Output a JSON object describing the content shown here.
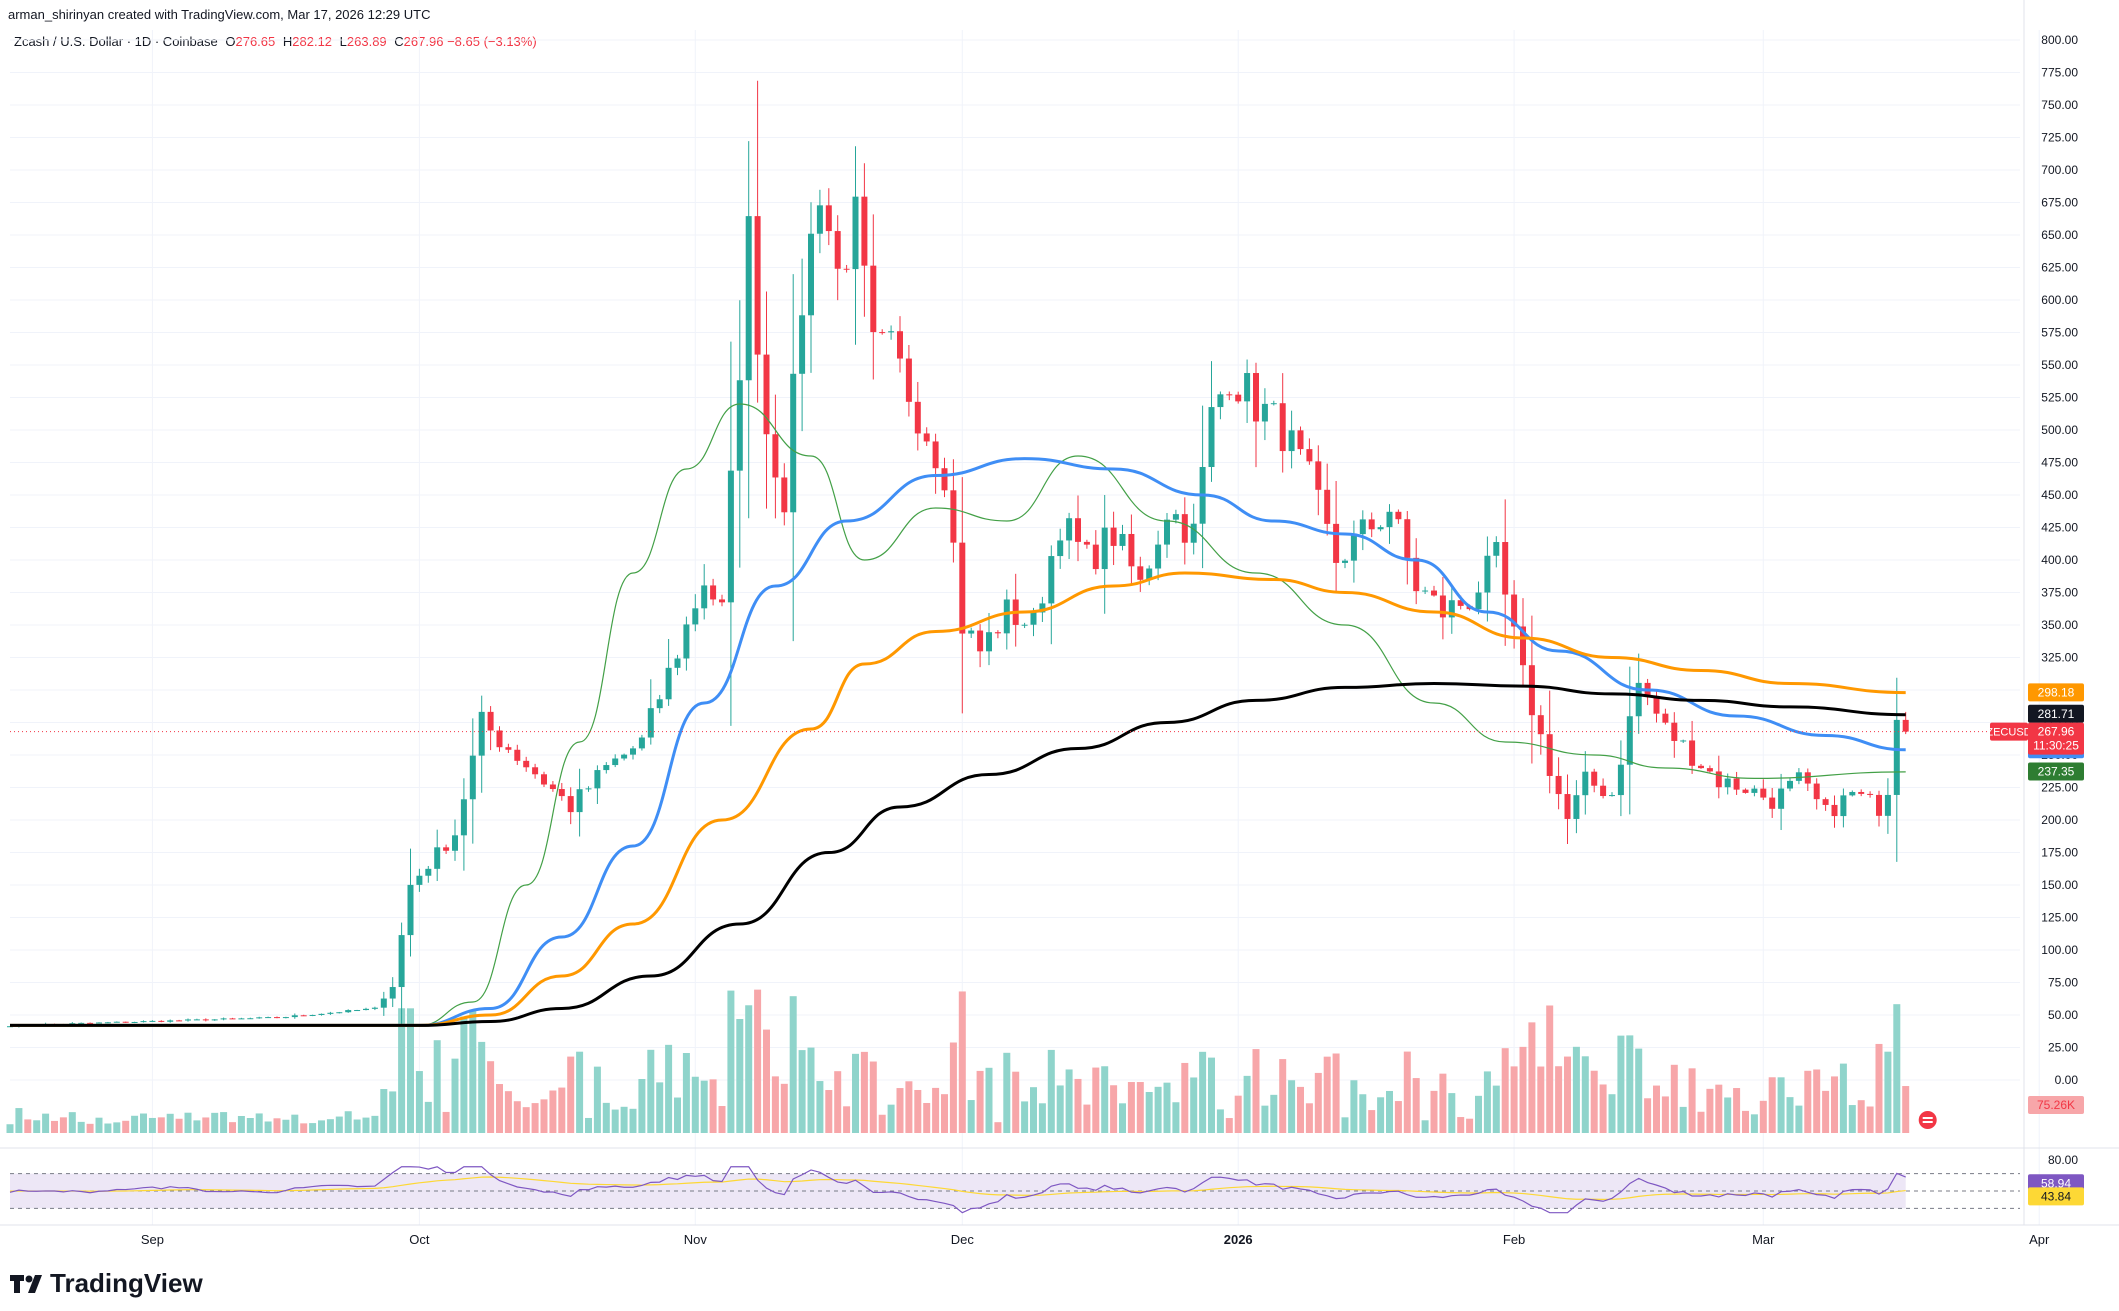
{
  "header": {
    "created_by": "arman_shirinyan created with TradingView.com, Mar 17, 2026 12:29 UTC",
    "symbol": "Zcash / U.S. Dollar · 1D · Coinbase",
    "ohlc": {
      "o_label": "O",
      "o": "276.65",
      "h_label": "H",
      "h": "282.12",
      "l_label": "L",
      "l": "263.89",
      "c_label": "C",
      "c": "267.96",
      "change": "−8.65 (−3.13%)"
    }
  },
  "brand": {
    "name": "TradingView",
    "icon": "tradingview-logo-icon"
  },
  "colors": {
    "up": "#26a69a",
    "down": "#f23645",
    "up_volume": "#8fd4cb",
    "down_volume": "#f7a6a9",
    "ma20": "#43a047",
    "ma50": "#3f8ef5",
    "ma100": "#ff9800",
    "ma200": "#000000",
    "rsi": "#7e57c2",
    "rsi_ma": "#fdd835",
    "rsi_band": "#ede7f6"
  },
  "chart_data": {
    "type": "candlestick",
    "price_axis": {
      "min": 0,
      "max": 800,
      "ticks": [
        "0.00",
        "25.00",
        "50.00",
        "75.00",
        "100.00",
        "125.00",
        "150.00",
        "175.00",
        "200.00",
        "225.00",
        "250.00",
        "275.00",
        "300.00",
        "325.00",
        "350.00",
        "375.00",
        "400.00",
        "425.00",
        "450.00",
        "475.00",
        "500.00",
        "525.00",
        "550.00",
        "575.00",
        "600.00",
        "625.00",
        "650.00",
        "675.00",
        "700.00",
        "725.00",
        "750.00",
        "775.00",
        "800.00"
      ]
    },
    "time_axis": {
      "labels": [
        {
          "text": "Sep",
          "bold": false
        },
        {
          "text": "Oct",
          "bold": false
        },
        {
          "text": "Nov",
          "bold": false
        },
        {
          "text": "Dec",
          "bold": false
        },
        {
          "text": "2026",
          "bold": true
        },
        {
          "text": "Feb",
          "bold": false
        },
        {
          "text": "Mar",
          "bold": false
        },
        {
          "text": "Apr",
          "bold": false
        }
      ]
    },
    "candle_close_points": [
      {
        "date": "2025-08-16",
        "close": 42
      },
      {
        "date": "2025-09-15",
        "close": 48
      },
      {
        "date": "2025-09-26",
        "close": 55
      },
      {
        "date": "2025-09-28",
        "close": 72
      },
      {
        "date": "2025-09-30",
        "close": 150
      },
      {
        "date": "2025-10-05",
        "close": 190
      },
      {
        "date": "2025-10-08",
        "close": 275
      },
      {
        "date": "2025-10-15",
        "close": 230
      },
      {
        "date": "2025-10-18",
        "close": 210
      },
      {
        "date": "2025-10-22",
        "close": 240
      },
      {
        "date": "2025-10-26",
        "close": 260
      },
      {
        "date": "2025-10-30",
        "close": 330
      },
      {
        "date": "2025-11-02",
        "close": 385
      },
      {
        "date": "2025-11-04",
        "close": 360
      },
      {
        "date": "2025-11-07",
        "close": 650
      },
      {
        "date": "2025-11-09",
        "close": 500
      },
      {
        "date": "2025-11-11",
        "close": 450
      },
      {
        "date": "2025-11-13",
        "close": 600
      },
      {
        "date": "2025-11-15",
        "close": 690
      },
      {
        "date": "2025-11-17",
        "close": 620
      },
      {
        "date": "2025-11-19",
        "close": 660
      },
      {
        "date": "2025-11-21",
        "close": 560
      },
      {
        "date": "2025-11-23",
        "close": 560
      },
      {
        "date": "2025-11-25",
        "close": 530
      },
      {
        "date": "2025-11-29",
        "close": 470
      },
      {
        "date": "2025-12-01",
        "close": 350
      },
      {
        "date": "2025-12-03",
        "close": 330
      },
      {
        "date": "2025-12-06",
        "close": 360
      },
      {
        "date": "2025-12-09",
        "close": 350
      },
      {
        "date": "2025-12-12",
        "close": 430
      },
      {
        "date": "2025-12-15",
        "close": 400
      },
      {
        "date": "2025-12-18",
        "close": 420
      },
      {
        "date": "2025-12-21",
        "close": 380
      },
      {
        "date": "2025-12-24",
        "close": 440
      },
      {
        "date": "2025-12-27",
        "close": 420
      },
      {
        "date": "2025-12-29",
        "close": 510
      },
      {
        "date": "2025-12-31",
        "close": 545
      },
      {
        "date": "2026-01-03",
        "close": 520
      },
      {
        "date": "2026-01-06",
        "close": 500
      },
      {
        "date": "2026-01-09",
        "close": 460
      },
      {
        "date": "2026-01-12",
        "close": 400
      },
      {
        "date": "2026-01-15",
        "close": 420
      },
      {
        "date": "2026-01-18",
        "close": 440
      },
      {
        "date": "2026-01-21",
        "close": 380
      },
      {
        "date": "2026-01-24",
        "close": 360
      },
      {
        "date": "2026-01-27",
        "close": 370
      },
      {
        "date": "2026-01-30",
        "close": 400
      },
      {
        "date": "2026-02-02",
        "close": 310
      },
      {
        "date": "2026-02-05",
        "close": 240
      },
      {
        "date": "2026-02-07",
        "close": 200
      },
      {
        "date": "2026-02-09",
        "close": 230
      },
      {
        "date": "2026-02-12",
        "close": 220
      },
      {
        "date": "2026-02-15",
        "close": 305
      },
      {
        "date": "2026-02-18",
        "close": 270
      },
      {
        "date": "2026-02-21",
        "close": 250
      },
      {
        "date": "2026-02-24",
        "close": 230
      },
      {
        "date": "2026-02-27",
        "close": 225
      },
      {
        "date": "2026-03-02",
        "close": 215
      },
      {
        "date": "2026-03-05",
        "close": 230
      },
      {
        "date": "2026-03-08",
        "close": 205
      },
      {
        "date": "2026-03-11",
        "close": 220
      },
      {
        "date": "2026-03-14",
        "close": 210
      },
      {
        "date": "2026-03-15",
        "close": 225
      },
      {
        "date": "2026-03-16",
        "close": 277
      },
      {
        "date": "2026-03-17",
        "close": 268
      }
    ],
    "moving_averages": [
      {
        "id": "ma20",
        "color_key": "ma20",
        "last": "237.35",
        "label_bg": "#2e7d32",
        "points": [
          [
            0,
            42
          ],
          [
            46,
            42
          ],
          [
            52,
            60
          ],
          [
            58,
            150
          ],
          [
            64,
            260
          ],
          [
            70,
            390
          ],
          [
            76,
            470
          ],
          [
            82,
            520
          ],
          [
            90,
            480
          ],
          [
            96,
            400
          ],
          [
            104,
            440
          ],
          [
            112,
            430
          ],
          [
            120,
            480
          ],
          [
            130,
            430
          ],
          [
            140,
            390
          ],
          [
            150,
            350
          ],
          [
            160,
            290
          ],
          [
            168,
            260
          ],
          [
            178,
            250
          ],
          [
            186,
            240
          ],
          [
            196,
            232
          ],
          [
            213,
            237
          ]
        ]
      },
      {
        "id": "ma50",
        "color_key": "ma50",
        "last": "254.41",
        "label_bg": "#3f8ef5",
        "points": [
          [
            0,
            42
          ],
          [
            46,
            42
          ],
          [
            54,
            55
          ],
          [
            62,
            110
          ],
          [
            70,
            180
          ],
          [
            78,
            290
          ],
          [
            86,
            380
          ],
          [
            94,
            430
          ],
          [
            104,
            465
          ],
          [
            114,
            478
          ],
          [
            124,
            470
          ],
          [
            134,
            450
          ],
          [
            142,
            430
          ],
          [
            150,
            420
          ],
          [
            158,
            400
          ],
          [
            166,
            360
          ],
          [
            174,
            330
          ],
          [
            184,
            300
          ],
          [
            194,
            280
          ],
          [
            204,
            265
          ],
          [
            213,
            254
          ]
        ]
      },
      {
        "id": "ma100",
        "color_key": "ma100",
        "last": "298.18",
        "label_bg": "#ff9800",
        "points": [
          [
            0,
            42
          ],
          [
            46,
            42
          ],
          [
            54,
            50
          ],
          [
            62,
            80
          ],
          [
            70,
            120
          ],
          [
            80,
            200
          ],
          [
            90,
            270
          ],
          [
            96,
            320
          ],
          [
            104,
            345
          ],
          [
            114,
            360
          ],
          [
            124,
            380
          ],
          [
            132,
            390
          ],
          [
            142,
            385
          ],
          [
            150,
            375
          ],
          [
            160,
            360
          ],
          [
            170,
            340
          ],
          [
            180,
            325
          ],
          [
            190,
            315
          ],
          [
            200,
            305
          ],
          [
            213,
            298
          ]
        ]
      },
      {
        "id": "ma200",
        "color_key": "ma200",
        "last": "281.71",
        "label_bg": "#131722",
        "points": [
          [
            0,
            42
          ],
          [
            46,
            42
          ],
          [
            54,
            45
          ],
          [
            62,
            55
          ],
          [
            72,
            80
          ],
          [
            82,
            120
          ],
          [
            92,
            175
          ],
          [
            100,
            210
          ],
          [
            110,
            235
          ],
          [
            120,
            255
          ],
          [
            130,
            275
          ],
          [
            140,
            292
          ],
          [
            150,
            302
          ],
          [
            160,
            305
          ],
          [
            170,
            303
          ],
          [
            180,
            297
          ],
          [
            190,
            292
          ],
          [
            200,
            287
          ],
          [
            213,
            281
          ]
        ]
      }
    ],
    "price_label": {
      "symbol": "ZECUSD",
      "value": "267.96",
      "countdown": "11:30:25"
    },
    "volume": {
      "last": "75.26K"
    },
    "rsi": {
      "value": "58.94",
      "ma_value": "43.84",
      "overbought": "70",
      "oversold": "30",
      "axis_label": "80.00"
    }
  }
}
